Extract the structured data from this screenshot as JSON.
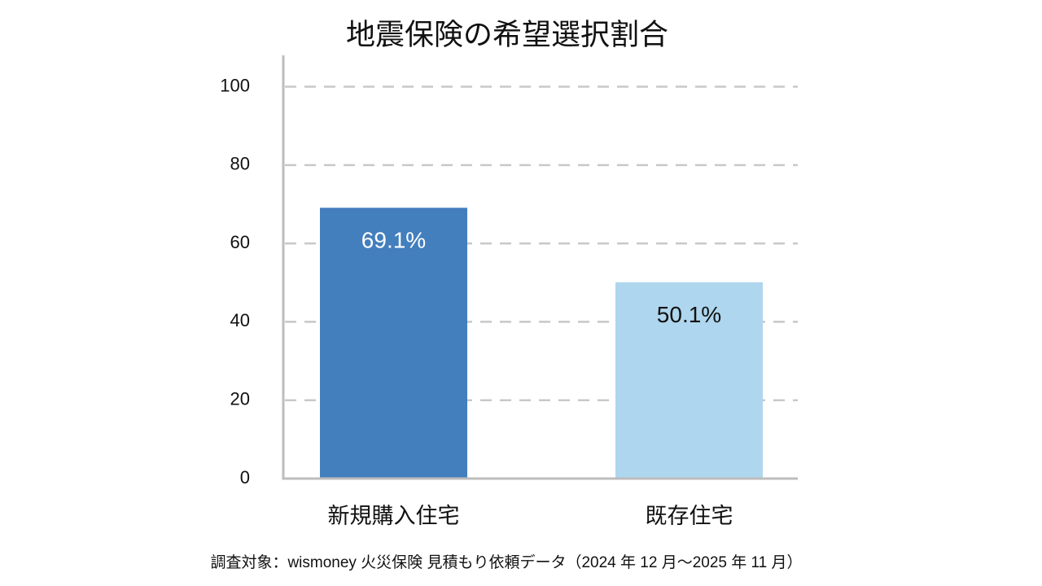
{
  "chart_data": {
    "type": "bar",
    "title": "地震保険の希望選択割合",
    "categories": [
      "新規購入住宅",
      "既存住宅"
    ],
    "values": [
      69.1,
      50.1
    ],
    "value_labels": [
      "69.1%",
      "50.1%"
    ],
    "colors": [
      "#437ebd",
      "#aed6ee"
    ],
    "ylim": [
      0,
      108
    ],
    "yticks": [
      0,
      20,
      40,
      60,
      80,
      100
    ],
    "grid": true,
    "source": "調査対象：wismoney 火災保険 見積もり依頼データ（2024 年 12 月〜2025 年 11 月）"
  }
}
